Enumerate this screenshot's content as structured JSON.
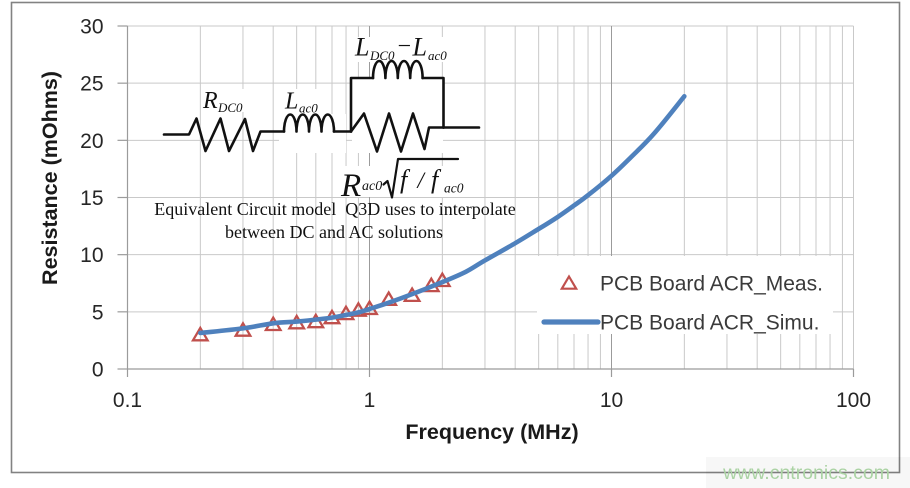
{
  "chart_data": {
    "type": "line",
    "xlabel": "Frequency (MHz)",
    "ylabel": "Resistance (mOhms)",
    "x_scale": "log",
    "x_range": [
      0.1,
      100
    ],
    "y_range": [
      0,
      30
    ],
    "x_ticks": [
      {
        "value": 0.1,
        "label": "0.1"
      },
      {
        "value": 1,
        "label": "1"
      },
      {
        "value": 10,
        "label": "10"
      },
      {
        "value": 100,
        "label": "100"
      }
    ],
    "y_ticks": [
      {
        "value": 0,
        "label": "0"
      },
      {
        "value": 5,
        "label": "5"
      },
      {
        "value": 10,
        "label": "10"
      },
      {
        "value": 15,
        "label": "15"
      },
      {
        "value": 20,
        "label": "20"
      },
      {
        "value": 25,
        "label": "25"
      },
      {
        "value": 30,
        "label": "30"
      }
    ],
    "grid": {
      "minor_color": "#c9c9c9",
      "major_color": "#9b9b9b",
      "axis_color": "#9b9b9b",
      "x_minor_per_decade": [
        2,
        3,
        4,
        5,
        6,
        7,
        8,
        9
      ],
      "x_major": [
        1,
        10
      ]
    },
    "series": [
      {
        "name": "PCB Board ACR_Meas.",
        "type": "scatter",
        "marker": "open-triangle",
        "color": "#c0504d",
        "points": [
          [
            0.2,
            3.0
          ],
          [
            0.3,
            3.4
          ],
          [
            0.4,
            3.9
          ],
          [
            0.5,
            4.05
          ],
          [
            0.6,
            4.15
          ],
          [
            0.7,
            4.5
          ],
          [
            0.8,
            4.85
          ],
          [
            0.9,
            5.15
          ],
          [
            1.0,
            5.3
          ],
          [
            1.2,
            6.1
          ],
          [
            1.5,
            6.45
          ],
          [
            1.8,
            7.3
          ],
          [
            2.0,
            7.75
          ]
        ]
      },
      {
        "name": "PCB Board ACR_Simu.",
        "type": "line",
        "color": "#4f81bd",
        "points": [
          [
            0.2,
            3.15
          ],
          [
            0.3,
            3.55
          ],
          [
            0.4,
            4.0
          ],
          [
            0.5,
            4.15
          ],
          [
            0.6,
            4.32
          ],
          [
            0.7,
            4.5
          ],
          [
            0.8,
            4.72
          ],
          [
            0.9,
            4.95
          ],
          [
            1.0,
            5.25
          ],
          [
            1.2,
            5.8
          ],
          [
            1.5,
            6.55
          ],
          [
            2.0,
            7.6
          ],
          [
            2.5,
            8.5
          ],
          [
            3.0,
            9.5
          ],
          [
            4.0,
            11.0
          ],
          [
            5.0,
            12.25
          ],
          [
            6.0,
            13.3
          ],
          [
            7.0,
            14.3
          ],
          [
            8.0,
            15.2
          ],
          [
            10.0,
            16.9
          ],
          [
            12.0,
            18.5
          ],
          [
            15.0,
            20.6
          ],
          [
            20.0,
            23.85
          ]
        ]
      }
    ],
    "legend_position": "inside lower right"
  },
  "legend": {
    "meas_label": "PCB Board ACR_Meas.",
    "simu_label": "PCB Board ACR_Simu."
  },
  "axis": {
    "x_title": "Frequency (MHz)",
    "y_title": "Resistance (mOhms)"
  },
  "circuit": {
    "r_dc0": {
      "main": "R",
      "sub": "DC0"
    },
    "l_ac0": {
      "main": "L",
      "sub": "ac0"
    },
    "l_diff": {
      "main1": "L",
      "sub1": "DC0",
      "minus": "−",
      "main2": "L",
      "sub2": "ac0"
    },
    "formula": {
      "base": "R",
      "base_sub": "ac0",
      "num": "f",
      "slash": "/",
      "den": "f",
      "den_sub": "ac0"
    }
  },
  "annotation": {
    "line1": "Equivalent Circuit model  Q3D uses to interpolate",
    "line2": "between DC and AC solutions"
  },
  "watermark": {
    "text": "www.cntronics.com",
    "color": "#abd3a4"
  }
}
